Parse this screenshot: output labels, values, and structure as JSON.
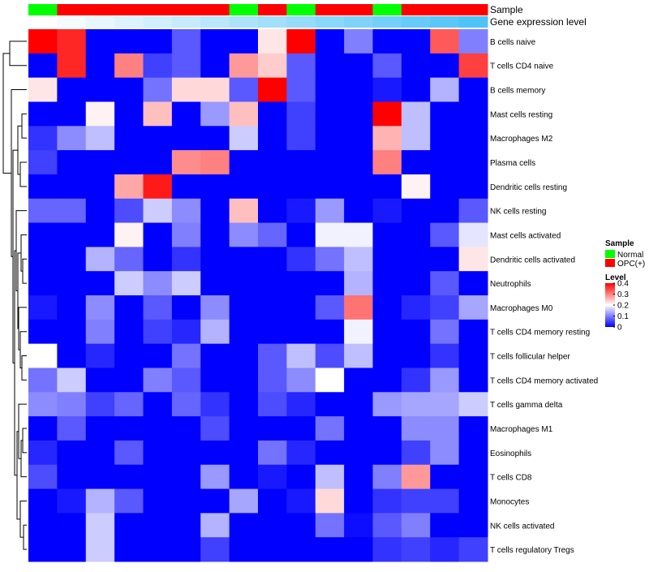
{
  "chart_data": {
    "type": "heatmap",
    "annotation_labels": [
      "Sample",
      "Gene expression level"
    ],
    "samples": [
      "Normal",
      "OPC(+)",
      "OPC(+)",
      "OPC(+)",
      "OPC(+)",
      "OPC(+)",
      "OPC(+)",
      "Normal",
      "OPC(+)",
      "Normal",
      "OPC(+)",
      "OPC(+)",
      "Normal",
      "OPC(+)",
      "OPC(+)",
      "OPC(+)"
    ],
    "expression_level": [
      0.0,
      0.07,
      0.13,
      0.2,
      0.27,
      0.33,
      0.4,
      0.47,
      0.53,
      0.6,
      0.67,
      0.73,
      0.8,
      0.87,
      0.93,
      1.0
    ],
    "rows": [
      "B cells naive",
      "T cells CD4 naive",
      "B cells memory",
      "Mast cells resting",
      "Macrophages M2",
      "Plasma cells",
      "Dendritic cells resting",
      "NK cells resting",
      "Mast cells activated",
      "Dendritic cells activated",
      "Neutrophils",
      "Macrophages M0",
      "T cells CD4 memory resting",
      "T cells follicular helper",
      "T cells CD4 memory activated",
      "T cells gamma delta",
      "Macrophages M1",
      "Eosinophils",
      "T cells CD8",
      "Monocytes",
      "NK cells activated",
      "T cells regulatory  Tregs"
    ],
    "values": [
      [
        0.4,
        0.37,
        0,
        0,
        0,
        0.07,
        0,
        0,
        0.22,
        0.4,
        0,
        0.1,
        0,
        0,
        0.33,
        0.1
      ],
      [
        0,
        0.37,
        0,
        0.3,
        0.05,
        0.07,
        0,
        0.28,
        0.24,
        0.07,
        0,
        0,
        0.07,
        0,
        0,
        0.35
      ],
      [
        0.22,
        0,
        0,
        0,
        0.09,
        0.23,
        0.23,
        0.07,
        0.4,
        0.07,
        0,
        0,
        0.02,
        0,
        0.14,
        0
      ],
      [
        0,
        0,
        0.21,
        0,
        0.25,
        0,
        0.12,
        0.25,
        0,
        0.05,
        0,
        0,
        0.4,
        0.15,
        0,
        0
      ],
      [
        0.04,
        0.11,
        0.15,
        0,
        0,
        0,
        0,
        0.16,
        0,
        0.05,
        0,
        0,
        0.26,
        0.15,
        0,
        0
      ],
      [
        0.05,
        0,
        0,
        0,
        0,
        0.29,
        0.3,
        0,
        0,
        0,
        0,
        0,
        0.3,
        0,
        0,
        0
      ],
      [
        0,
        0,
        0,
        0.27,
        0.38,
        0,
        0,
        0,
        0,
        0,
        0,
        0,
        0,
        0.21,
        0,
        0
      ],
      [
        0.08,
        0.08,
        0,
        0.06,
        0.16,
        0.11,
        0,
        0.25,
        0,
        0.02,
        0.12,
        0,
        0.02,
        0,
        0,
        0.07
      ],
      [
        0,
        0,
        0,
        0.21,
        0,
        0.1,
        0,
        0.11,
        0.08,
        0,
        0.19,
        0.19,
        0,
        0,
        0.07,
        0.18
      ],
      [
        0,
        0,
        0.14,
        0.08,
        0,
        0.04,
        0,
        0,
        0,
        0.04,
        0.09,
        0.15,
        0,
        0,
        0,
        0.22
      ],
      [
        0,
        0,
        0,
        0.16,
        0.11,
        0.16,
        0,
        0,
        0,
        0,
        0,
        0.14,
        0,
        0,
        0.07,
        0
      ],
      [
        0.02,
        0,
        0.11,
        0,
        0.07,
        0,
        0.11,
        0,
        0,
        0,
        0.07,
        0.31,
        0,
        0.03,
        0.05,
        0.13
      ],
      [
        0,
        0,
        0.1,
        0,
        0.05,
        0.03,
        0.14,
        0,
        0,
        0,
        0,
        0.19,
        0,
        0,
        0.09,
        0
      ],
      [
        0.2,
        0,
        0.03,
        0,
        0,
        0.09,
        0,
        0,
        0.07,
        0.15,
        0.06,
        0.15,
        0,
        0,
        0.04,
        0
      ],
      [
        0.09,
        0.16,
        0,
        0,
        0.1,
        0.07,
        0,
        0,
        0.07,
        0.11,
        0.2,
        0,
        0,
        0.04,
        0.12,
        0
      ],
      [
        0.11,
        0.1,
        0.05,
        0.08,
        0,
        0.08,
        0.04,
        0,
        0.06,
        0.03,
        0,
        0,
        0.12,
        0.13,
        0.13,
        0.16
      ],
      [
        0,
        0.07,
        0,
        0,
        0,
        0,
        0.06,
        0,
        0,
        0,
        0.09,
        0,
        0,
        0.11,
        0.11,
        0
      ],
      [
        0.03,
        0,
        0,
        0.07,
        0,
        0,
        0,
        0,
        0.09,
        0.03,
        0,
        0,
        0,
        0.05,
        0.11,
        0
      ],
      [
        0.06,
        0,
        0,
        0,
        0,
        0,
        0.12,
        0,
        0.02,
        0,
        0.15,
        0,
        0.1,
        0.28,
        0,
        0
      ],
      [
        0,
        0.02,
        0.14,
        0.07,
        0,
        0,
        0,
        0.13,
        0,
        0.02,
        0.23,
        0,
        0.04,
        0.05,
        0.05,
        0
      ],
      [
        0,
        0,
        0.16,
        0,
        0,
        0,
        0.14,
        0,
        0,
        0,
        0.09,
        0.01,
        0.07,
        0.1,
        0,
        0
      ],
      [
        0,
        0,
        0.16,
        0,
        0,
        0,
        0.05,
        0,
        0,
        0,
        0,
        0,
        0.04,
        0.05,
        0.03,
        0.05
      ]
    ],
    "legends": {
      "sample_title": "Sample",
      "sample_entries": [
        {
          "label": "Normal",
          "color": "#00ff00"
        },
        {
          "label": "OPC(+)",
          "color": "#ff0000"
        }
      ],
      "level_title": "Level",
      "level_ticks": [
        {
          "value": 0.4,
          "label": "0.4"
        },
        {
          "value": 0.3,
          "label": "0.3"
        },
        {
          "value": 0.2,
          "label": "0.2"
        },
        {
          "value": 0.1,
          "label": "0.1"
        },
        {
          "value": 0,
          "label": "0"
        }
      ]
    },
    "color_scale": {
      "low": "#0000ff",
      "mid": "#ffffff",
      "high": "#ff0000",
      "min": 0,
      "mid_value": 0.2,
      "max": 0.4
    },
    "expression_colors": {
      "low": "#ffffff",
      "high": "#4fc3f7"
    },
    "sample_colors": {
      "Normal": "#00ff00",
      "OPC(+)": "#ff0000"
    },
    "dendrogram": "rows"
  }
}
